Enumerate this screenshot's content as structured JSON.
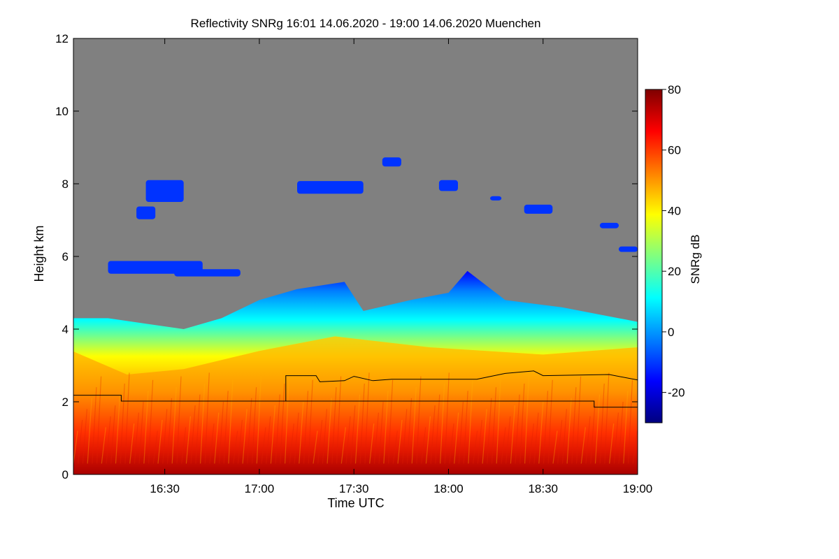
{
  "chart_data": {
    "type": "heatmap",
    "title": "Reflectivity SNRg   16:01 14.06.2020 - 19:00 14.06.2020 Muenchen",
    "xlabel": "Time UTC",
    "ylabel": "Height km",
    "x_range_hours": [
      16.017,
      19.0
    ],
    "y_range_km": [
      0,
      12
    ],
    "x_ticks": [
      {
        "value": 16.5,
        "label": "16:30"
      },
      {
        "value": 17.0,
        "label": "17:00"
      },
      {
        "value": 17.5,
        "label": "17:30"
      },
      {
        "value": 18.0,
        "label": "18:00"
      },
      {
        "value": 18.5,
        "label": "18:30"
      },
      {
        "value": 19.0,
        "label": "19:00"
      }
    ],
    "y_ticks": [
      {
        "value": 0,
        "label": "0"
      },
      {
        "value": 2,
        "label": "2"
      },
      {
        "value": 4,
        "label": "4"
      },
      {
        "value": 6,
        "label": "6"
      },
      {
        "value": 8,
        "label": "8"
      },
      {
        "value": 10,
        "label": "10"
      },
      {
        "value": 12,
        "label": "12"
      }
    ],
    "colorbar": {
      "label": "SNRg dB",
      "range": [
        -30,
        80
      ],
      "ticks": [
        {
          "value": -20,
          "label": "-20"
        },
        {
          "value": 0,
          "label": "0"
        },
        {
          "value": 20,
          "label": "20"
        },
        {
          "value": 40,
          "label": "40"
        },
        {
          "value": 60,
          "label": "60"
        },
        {
          "value": 80,
          "label": "80"
        }
      ],
      "colors": [
        "#00007f",
        "#0000ff",
        "#0080ff",
        "#00ffff",
        "#80ff80",
        "#ffff00",
        "#ff8000",
        "#ff0000",
        "#7f0000"
      ]
    },
    "background_color": "#808080",
    "boundary_layer_top": [
      {
        "x": 16.01,
        "y": 4.3
      },
      {
        "x": 16.2,
        "y": 4.3
      },
      {
        "x": 16.4,
        "y": 4.15
      },
      {
        "x": 16.6,
        "y": 4.0
      },
      {
        "x": 16.8,
        "y": 4.3
      },
      {
        "x": 17.0,
        "y": 4.8
      },
      {
        "x": 17.2,
        "y": 5.1
      },
      {
        "x": 17.45,
        "y": 5.3
      },
      {
        "x": 17.55,
        "y": 4.5
      },
      {
        "x": 17.8,
        "y": 4.8
      },
      {
        "x": 18.0,
        "y": 5.0
      },
      {
        "x": 18.1,
        "y": 5.6
      },
      {
        "x": 18.3,
        "y": 4.8
      },
      {
        "x": 18.6,
        "y": 4.6
      },
      {
        "x": 19.0,
        "y": 4.2
      }
    ],
    "lower_mixed_layer_top": [
      {
        "x": 16.01,
        "y": 3.4
      },
      {
        "x": 16.3,
        "y": 2.75
      },
      {
        "x": 16.6,
        "y": 2.9
      },
      {
        "x": 17.0,
        "y": 3.4
      },
      {
        "x": 17.4,
        "y": 3.8
      },
      {
        "x": 17.9,
        "y": 3.5
      },
      {
        "x": 18.5,
        "y": 3.3
      },
      {
        "x": 19.0,
        "y": 3.5
      }
    ],
    "cloud_patches": [
      {
        "x_start": 16.2,
        "x_end": 16.7,
        "y": 5.7,
        "thickness": 0.35
      },
      {
        "x_start": 16.55,
        "x_end": 16.9,
        "y": 5.55,
        "thickness": 0.2
      },
      {
        "x_start": 16.4,
        "x_end": 16.6,
        "y": 7.8,
        "thickness": 0.6
      },
      {
        "x_start": 16.35,
        "x_end": 16.45,
        "y": 7.2,
        "thickness": 0.35
      },
      {
        "x_start": 17.2,
        "x_end": 17.55,
        "y": 7.9,
        "thickness": 0.35
      },
      {
        "x_start": 17.65,
        "x_end": 17.75,
        "y": 8.6,
        "thickness": 0.25
      },
      {
        "x_start": 17.95,
        "x_end": 18.05,
        "y": 7.95,
        "thickness": 0.3
      },
      {
        "x_start": 18.22,
        "x_end": 18.28,
        "y": 7.6,
        "thickness": 0.12
      },
      {
        "x_start": 18.4,
        "x_end": 18.55,
        "y": 7.3,
        "thickness": 0.25
      },
      {
        "x_start": 18.8,
        "x_end": 18.9,
        "y": 6.85,
        "thickness": 0.15
      },
      {
        "x_start": 18.9,
        "x_end": 19.0,
        "y": 6.2,
        "thickness": 0.15
      }
    ],
    "lines": [
      {
        "name": "",
        "points": [
          {
            "x": 16.01,
            "y": 2.18
          },
          {
            "x": 16.27,
            "y": 2.18
          },
          {
            "x": 16.27,
            "y": 2.02
          },
          {
            "x": 17.14,
            "y": 2.02
          },
          {
            "x": 17.14,
            "y": 2.72
          },
          {
            "x": 17.3,
            "y": 2.72
          },
          {
            "x": 17.32,
            "y": 2.55
          },
          {
            "x": 17.45,
            "y": 2.58
          },
          {
            "x": 17.5,
            "y": 2.7
          },
          {
            "x": 17.6,
            "y": 2.58
          },
          {
            "x": 17.7,
            "y": 2.62
          },
          {
            "x": 18.15,
            "y": 2.62
          },
          {
            "x": 18.3,
            "y": 2.78
          },
          {
            "x": 18.45,
            "y": 2.85
          },
          {
            "x": 18.5,
            "y": 2.72
          },
          {
            "x": 18.85,
            "y": 2.75
          },
          {
            "x": 19.0,
            "y": 2.6
          }
        ]
      },
      {
        "name": "",
        "points": [
          {
            "x": 17.14,
            "y": 2.02
          },
          {
            "x": 18.77,
            "y": 2.02
          },
          {
            "x": 18.77,
            "y": 1.85
          },
          {
            "x": 19.0,
            "y": 1.85
          }
        ]
      }
    ]
  }
}
